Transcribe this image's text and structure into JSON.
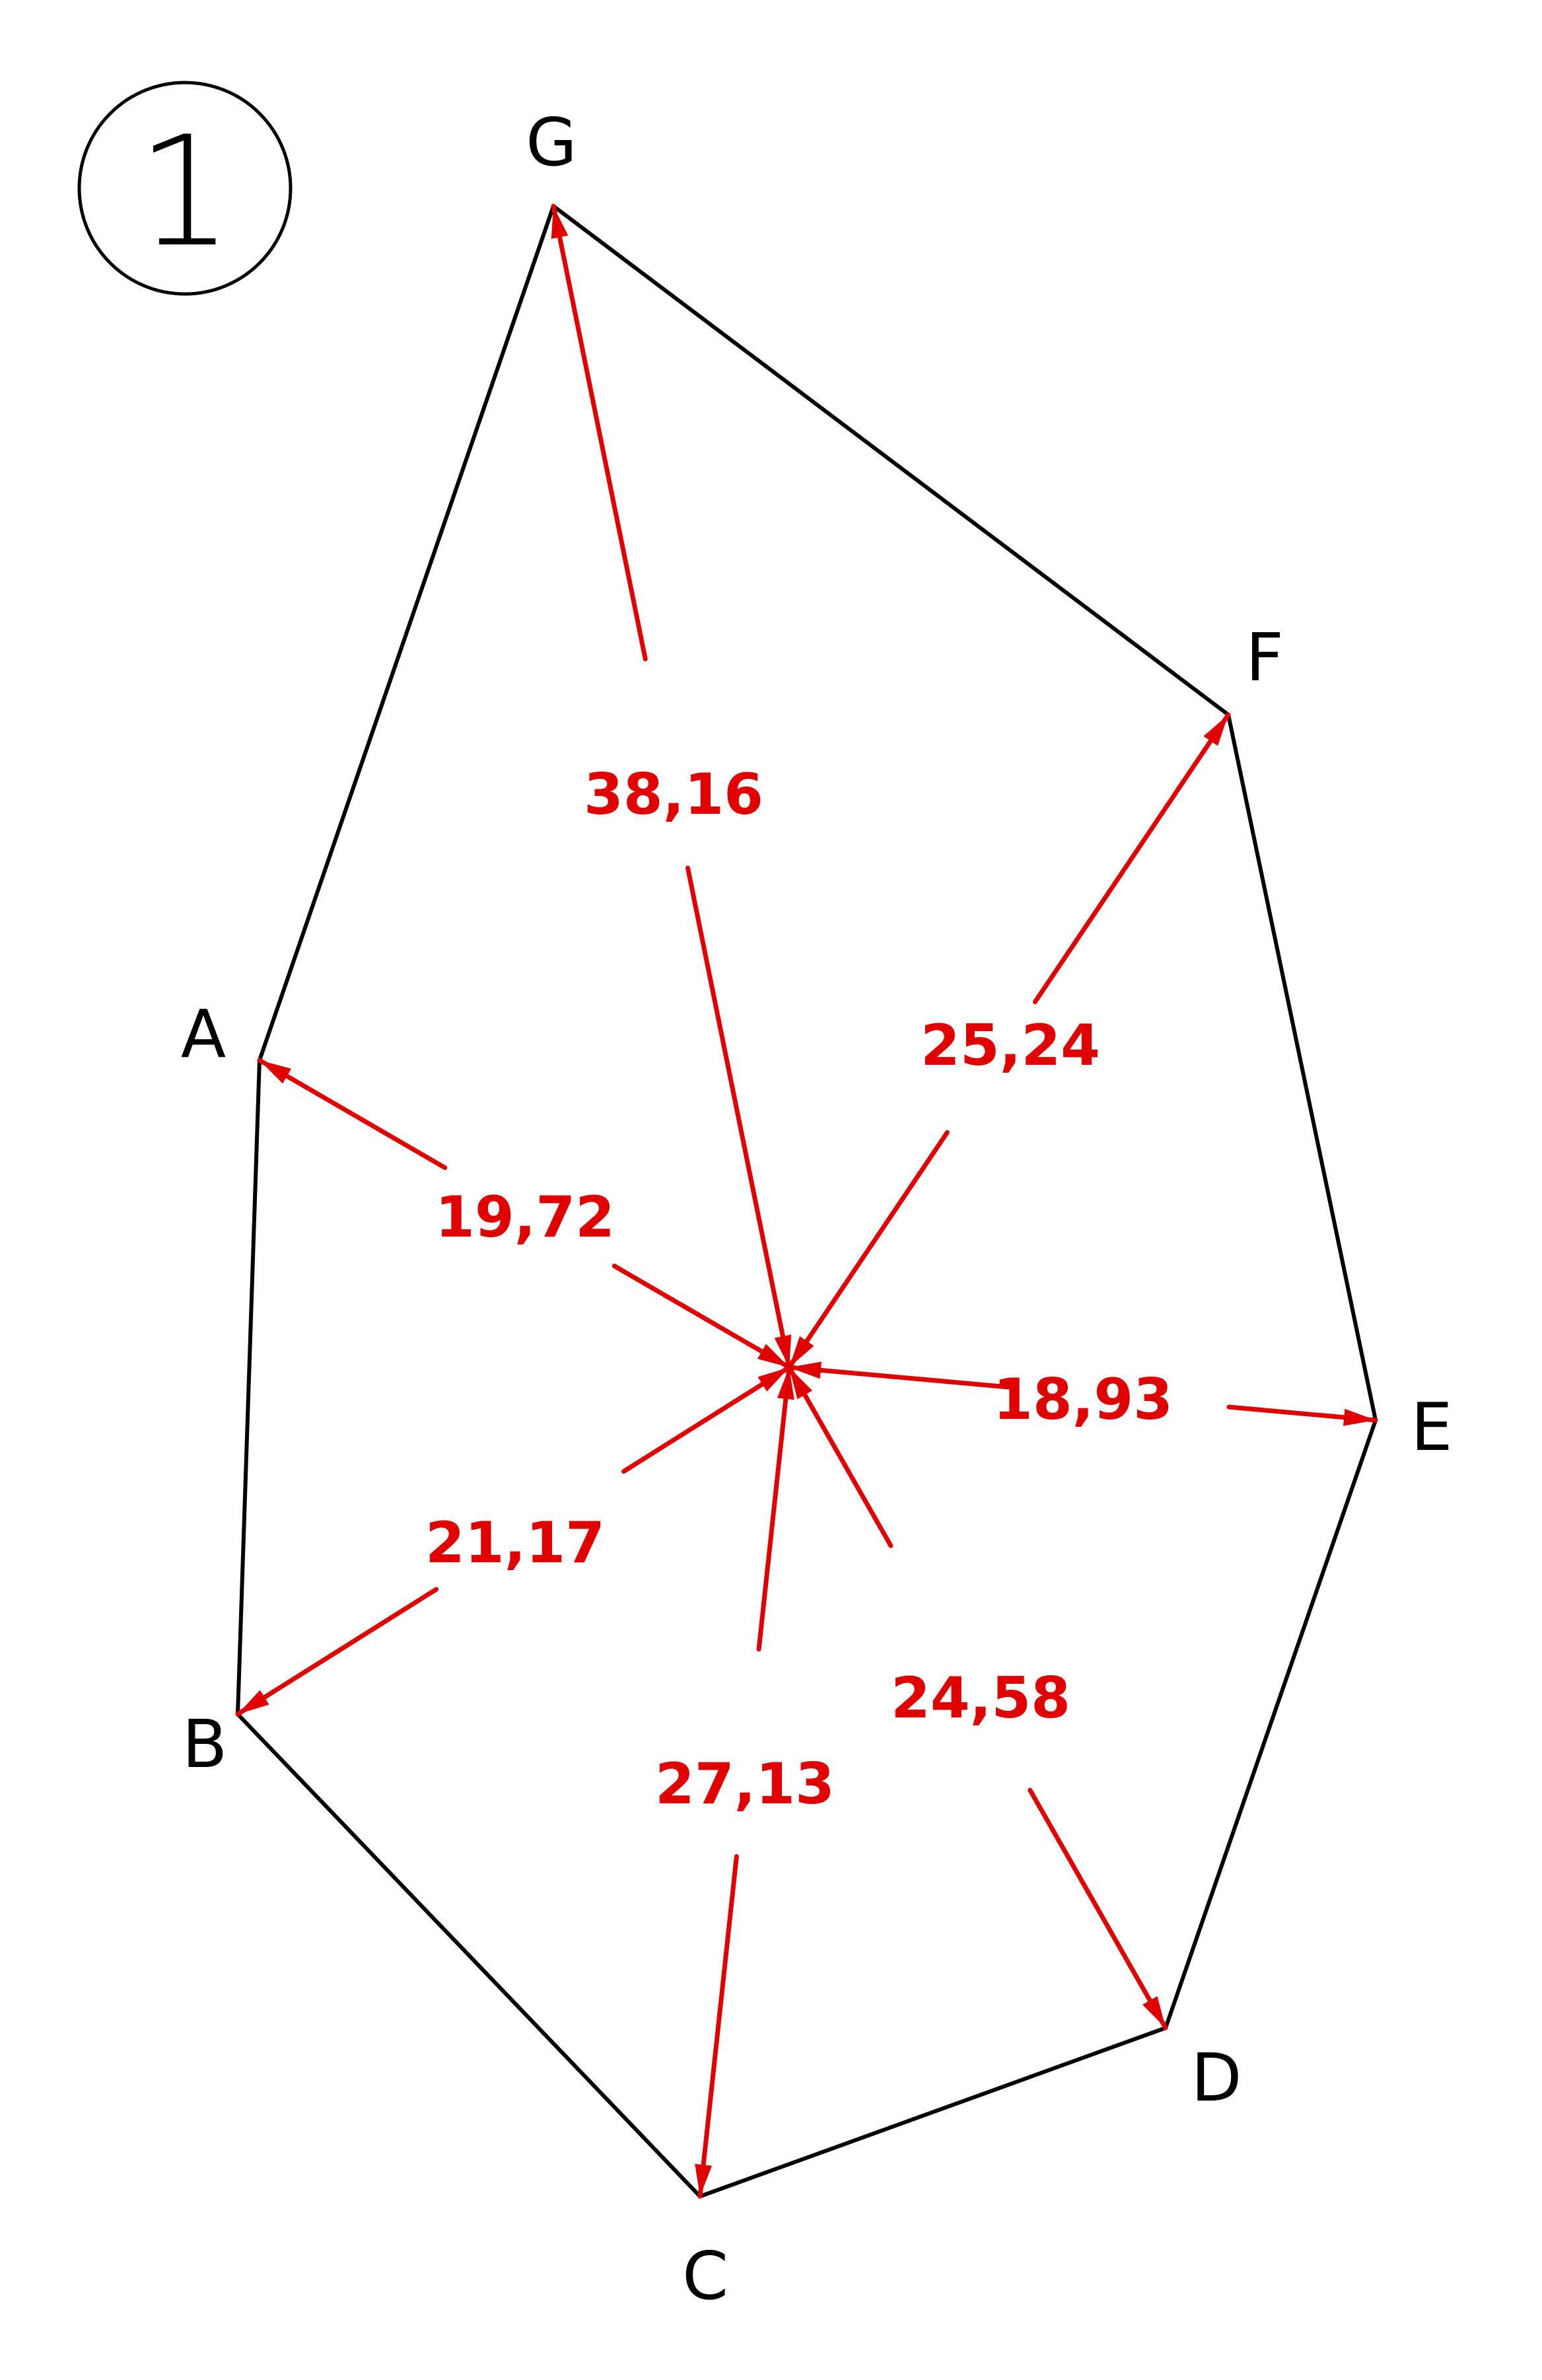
{
  "figure_number": "1",
  "vertices": [
    {
      "id": "G",
      "label": "G"
    },
    {
      "id": "F",
      "label": "F"
    },
    {
      "id": "E",
      "label": "E"
    },
    {
      "id": "D",
      "label": "D"
    },
    {
      "id": "C",
      "label": "C"
    },
    {
      "id": "B",
      "label": "B"
    },
    {
      "id": "A",
      "label": "A"
    }
  ],
  "distances": [
    {
      "to": "G",
      "value": "38,16"
    },
    {
      "to": "F",
      "value": "25,24"
    },
    {
      "to": "A",
      "value": "19,72"
    },
    {
      "to": "E",
      "value": "18,93"
    },
    {
      "to": "B",
      "value": "21,17"
    },
    {
      "to": "D",
      "value": "24,58"
    },
    {
      "to": "C",
      "value": "27,13"
    }
  ],
  "colors": {
    "outline": "#000000",
    "distance": "#e00000"
  }
}
